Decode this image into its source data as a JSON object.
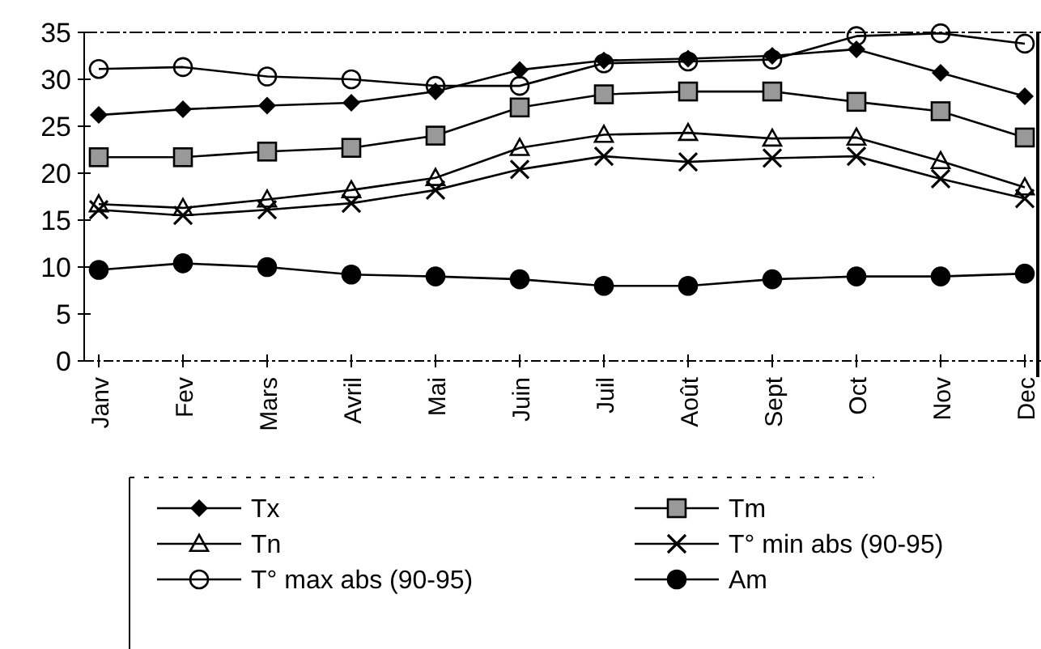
{
  "chart_data": {
    "type": "line",
    "categories": [
      "Janv",
      "Fev",
      "Mars",
      "Avril",
      "Mai",
      "Juin",
      "Juil",
      "Août",
      "Sept",
      "Oct",
      "Nov",
      "Dec"
    ],
    "ylim": [
      0,
      35
    ],
    "yticks": [
      0,
      5,
      10,
      15,
      20,
      25,
      30,
      35
    ],
    "grid": false,
    "legend": "bottom",
    "line_style": "solid",
    "series": [
      {
        "name": "Tx",
        "color": "#000000",
        "marker": "diamond",
        "values": [
          26.2,
          26.8,
          27.2,
          27.5,
          28.7,
          31,
          32,
          32.2,
          32.5,
          33.2,
          30.7,
          28.2
        ]
      },
      {
        "name": "Tm",
        "color": "#000000",
        "marker": "square",
        "values": [
          21.7,
          21.7,
          22.3,
          22.7,
          24,
          27,
          28.4,
          28.7,
          28.7,
          27.6,
          26.6,
          23.8
        ]
      },
      {
        "name": "Tn",
        "color": "#000000",
        "marker": "triangle",
        "values": [
          16.7,
          16.3,
          17.2,
          18.2,
          19.5,
          22.7,
          24.1,
          24.3,
          23.7,
          23.8,
          21.3,
          18.5
        ]
      },
      {
        "name": "T° min abs (90-95)",
        "color": "#000000",
        "marker": "cross",
        "values": [
          16.1,
          15.5,
          16.1,
          16.8,
          18.2,
          20.4,
          21.8,
          21.2,
          21.6,
          21.8,
          19.4,
          17.3
        ]
      },
      {
        "name": "T° max abs (90-95)",
        "color": "#000000",
        "marker": "circle",
        "values": [
          31.1,
          31.3,
          30.3,
          30,
          29.3,
          29.3,
          31.7,
          31.9,
          32.1,
          34.6,
          34.9,
          33.8
        ]
      },
      {
        "name": "Am",
        "color": "#000000",
        "marker": "circle",
        "values": [
          9.7,
          10.4,
          10,
          9.2,
          9,
          8.7,
          8,
          8,
          8.7,
          9,
          9,
          9.3
        ]
      }
    ]
  }
}
